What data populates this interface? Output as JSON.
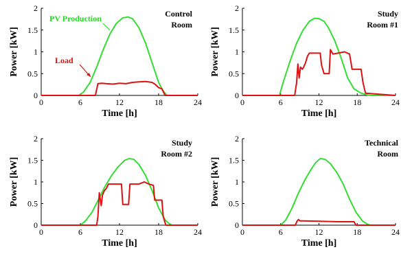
{
  "chart_data": [
    {
      "type": "line",
      "title": [
        "Control",
        "Room"
      ],
      "xlabel": "Time [h]",
      "ylabel": "Power [kW]",
      "xlim": [
        0,
        24
      ],
      "ylim": [
        0,
        2
      ],
      "xticks": [
        0,
        6,
        12,
        18,
        24
      ],
      "yticks": [
        0,
        0.5,
        1,
        1.5,
        2
      ],
      "annotations": [
        {
          "text": "PV Production",
          "color": "#22dd22"
        },
        {
          "text": "Load",
          "color": "#dd1111"
        }
      ],
      "series": [
        {
          "name": "PV Production",
          "color": "#33dd33",
          "x": [
            0,
            5.8,
            6.5,
            7.5,
            8.5,
            9.5,
            10.5,
            11.5,
            12.5,
            13.3,
            14,
            15,
            16,
            17,
            18,
            18.7,
            19.3,
            24
          ],
          "y": [
            0,
            0,
            0.08,
            0.3,
            0.65,
            1.05,
            1.4,
            1.65,
            1.78,
            1.8,
            1.76,
            1.55,
            1.2,
            0.75,
            0.3,
            0.1,
            0,
            0
          ]
        },
        {
          "name": "Load",
          "color": "#dd1111",
          "x": [
            0,
            8.3,
            8.7,
            9.3,
            10,
            11,
            12,
            13,
            14,
            15,
            16,
            17,
            17.5,
            18,
            18.5,
            19,
            24
          ],
          "y": [
            0,
            0,
            0.27,
            0.28,
            0.27,
            0.26,
            0.28,
            0.27,
            0.3,
            0.31,
            0.32,
            0.3,
            0.25,
            0.18,
            0.15,
            0,
            0
          ]
        }
      ]
    },
    {
      "type": "line",
      "title": [
        "Study",
        "Room #1"
      ],
      "xlabel": "Time [h]",
      "ylabel": "Power [kW]",
      "xlim": [
        0,
        24
      ],
      "ylim": [
        0,
        2
      ],
      "xticks": [
        0,
        6,
        12,
        18,
        24
      ],
      "yticks": [
        0,
        0.5,
        1,
        1.5,
        2
      ],
      "series": [
        {
          "name": "PV Production",
          "color": "#33dd33",
          "x": [
            0,
            5.8,
            6.5,
            7.5,
            8.5,
            9.5,
            10.5,
            11.3,
            12,
            12.8,
            13.5,
            14.5,
            15.5,
            16.5,
            17.5,
            18.5,
            19.3,
            20,
            24
          ],
          "y": [
            0,
            0,
            0.35,
            0.8,
            1.2,
            1.5,
            1.7,
            1.77,
            1.76,
            1.7,
            1.55,
            1.25,
            0.85,
            0.4,
            0.15,
            0.06,
            0.02,
            0,
            0
          ]
        },
        {
          "name": "Load",
          "color": "#dd1111",
          "x": [
            0,
            8.2,
            8.5,
            8.7,
            8.9,
            9.1,
            9.4,
            9.6,
            9.9,
            10.2,
            10.5,
            12.2,
            12.4,
            12.8,
            13.6,
            13.8,
            14.2,
            15,
            16,
            16.8,
            17.2,
            17.8,
            18.6,
            18.9,
            19.3,
            24
          ],
          "y": [
            0,
            0,
            0.3,
            0.72,
            0.4,
            0.65,
            0.6,
            0.65,
            0.75,
            0.9,
            0.97,
            0.97,
            0.7,
            0.5,
            0.5,
            1.05,
            0.95,
            0.97,
            1.0,
            0.95,
            0.6,
            0.6,
            0.6,
            0.3,
            0.05,
            0
          ]
        }
      ]
    },
    {
      "type": "line",
      "title": [
        "Study",
        "Room #2"
      ],
      "xlabel": "Time [h]",
      "ylabel": "Power [kW]",
      "xlim": [
        0,
        24
      ],
      "ylim": [
        0,
        2
      ],
      "xticks": [
        0,
        6,
        12,
        18,
        24
      ],
      "yticks": [
        0,
        0.5,
        1,
        1.5,
        2
      ],
      "series": [
        {
          "name": "PV Production",
          "color": "#33dd33",
          "x": [
            0,
            6,
            6.8,
            7.8,
            8.8,
            9.8,
            10.8,
            11.8,
            12.8,
            13.5,
            14.2,
            15,
            16,
            17,
            18,
            19,
            19.5,
            20,
            24
          ],
          "y": [
            0,
            0,
            0.1,
            0.3,
            0.6,
            0.9,
            1.15,
            1.35,
            1.5,
            1.54,
            1.52,
            1.4,
            1.15,
            0.8,
            0.4,
            0.12,
            0.05,
            0,
            0
          ]
        },
        {
          "name": "Load",
          "color": "#dd1111",
          "x": [
            0,
            8.5,
            8.7,
            8.9,
            9.2,
            9.4,
            9.7,
            10,
            10.3,
            12.3,
            12.5,
            13.4,
            13.6,
            14.2,
            15,
            15.8,
            16.5,
            17.2,
            17.4,
            18.5,
            18.7,
            19.1,
            24
          ],
          "y": [
            0,
            0,
            0.2,
            0.75,
            0.45,
            0.7,
            0.8,
            0.85,
            0.95,
            0.95,
            0.48,
            0.48,
            0.95,
            0.95,
            0.95,
            1.0,
            0.95,
            0.92,
            0.58,
            0.58,
            0.2,
            0,
            0
          ]
        }
      ]
    },
    {
      "type": "line",
      "title": [
        "Technical",
        "Room"
      ],
      "xlabel": "Time [h]",
      "ylabel": "Power [kW]",
      "xlim": [
        0,
        24
      ],
      "ylim": [
        0,
        2
      ],
      "xticks": [
        0,
        6,
        12,
        18,
        24
      ],
      "yticks": [
        0,
        0.5,
        1,
        1.5,
        2
      ],
      "series": [
        {
          "name": "PV Production",
          "color": "#33dd33",
          "x": [
            0,
            6,
            6.8,
            7.8,
            8.8,
            9.8,
            10.8,
            11.5,
            12.2,
            13,
            13.8,
            14.8,
            15.8,
            16.8,
            17.8,
            18.8,
            19.5,
            20,
            24
          ],
          "y": [
            0,
            0,
            0.12,
            0.4,
            0.75,
            1.05,
            1.3,
            1.45,
            1.54,
            1.52,
            1.42,
            1.22,
            0.95,
            0.6,
            0.3,
            0.1,
            0.03,
            0,
            0
          ]
        },
        {
          "name": "Load",
          "color": "#dd1111",
          "x": [
            0,
            8.3,
            8.6,
            8.8,
            9,
            9.5,
            12,
            15,
            17.5,
            17.8,
            24
          ],
          "y": [
            0,
            0,
            0.1,
            0.13,
            0.1,
            0.1,
            0.09,
            0.08,
            0.08,
            0,
            0
          ]
        }
      ]
    }
  ]
}
